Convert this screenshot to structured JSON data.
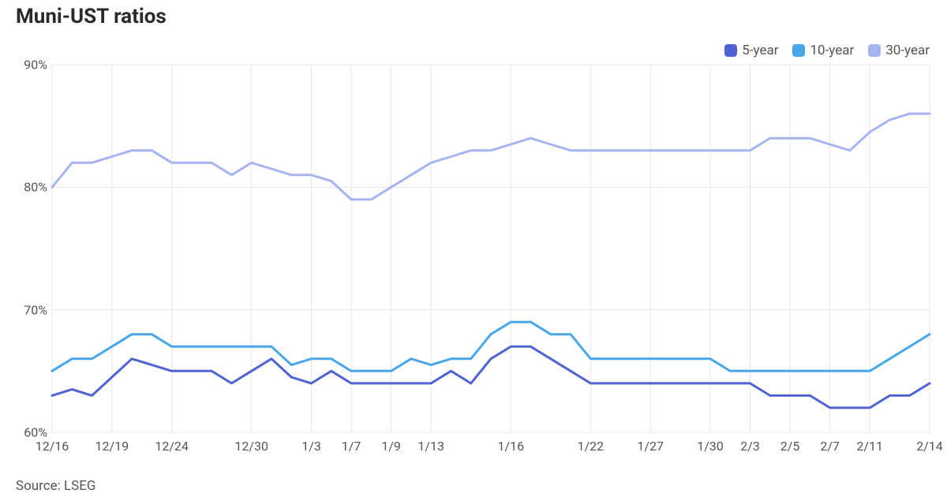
{
  "title": "Muni-UST ratios",
  "source_text": "Source: LSEG",
  "chart": {
    "type": "line",
    "background_color": "#ffffff",
    "grid_color": "#e6e6e6",
    "axis_text_color": "#555555",
    "axis_fontsize": 16,
    "title_fontsize": 26,
    "title_color": "#2a2a2a",
    "line_width": 3,
    "ylim": [
      60,
      90
    ],
    "ytick_step": 10,
    "y_tick_labels": [
      "60%",
      "70%",
      "80%",
      "90%"
    ],
    "x_count": 45,
    "x_ticks": [
      {
        "i": 0,
        "label": "12/16"
      },
      {
        "i": 3,
        "label": "12/19"
      },
      {
        "i": 6,
        "label": "12/24"
      },
      {
        "i": 10,
        "label": "12/30"
      },
      {
        "i": 13,
        "label": "1/3"
      },
      {
        "i": 15,
        "label": "1/7"
      },
      {
        "i": 17,
        "label": "1/9"
      },
      {
        "i": 19,
        "label": "1/13"
      },
      {
        "i": 23,
        "label": "1/16"
      },
      {
        "i": 27,
        "label": "1/22"
      },
      {
        "i": 30,
        "label": "1/27"
      },
      {
        "i": 33,
        "label": "1/30"
      },
      {
        "i": 35,
        "label": "2/3"
      },
      {
        "i": 37,
        "label": "2/5"
      },
      {
        "i": 39,
        "label": "2/7"
      },
      {
        "i": 41,
        "label": "2/11"
      },
      {
        "i": 44,
        "label": "2/14"
      }
    ],
    "legend": [
      {
        "label": "5-year",
        "color": "#4f63d2"
      },
      {
        "label": "10-year",
        "color": "#49a7e9"
      },
      {
        "label": "30-year",
        "color": "#a6b4f0"
      }
    ],
    "series": [
      {
        "name": "5-year",
        "color": "#4f63d2",
        "values": [
          63,
          63.5,
          63,
          64.5,
          66,
          65.5,
          65,
          65,
          65,
          64,
          65,
          66,
          64.5,
          64,
          65,
          64,
          64,
          64,
          64,
          64,
          65,
          64,
          66,
          67,
          67,
          66,
          65,
          64,
          64,
          64,
          64,
          64,
          64,
          64,
          64,
          64,
          63,
          63,
          63,
          62,
          62,
          62,
          63,
          63,
          64
        ]
      },
      {
        "name": "10-year",
        "color": "#49a7e9",
        "values": [
          65,
          66,
          66,
          67,
          68,
          68,
          67,
          67,
          67,
          67,
          67,
          67,
          65.5,
          66,
          66,
          65,
          65,
          65,
          66,
          65.5,
          66,
          66,
          68,
          69,
          69,
          68,
          68,
          66,
          66,
          66,
          66,
          66,
          66,
          66,
          65,
          65,
          65,
          65,
          65,
          65,
          65,
          65,
          66,
          67,
          68
        ]
      },
      {
        "name": "30-year",
        "color": "#a6b4f0",
        "values": [
          80,
          82,
          82,
          82.5,
          83,
          83,
          82,
          82,
          82,
          81,
          82,
          81.5,
          81,
          81,
          80.5,
          79,
          79,
          80,
          81,
          82,
          82.5,
          83,
          83,
          83.5,
          84,
          83.5,
          83,
          83,
          83,
          83,
          83,
          83,
          83,
          83,
          83,
          83,
          84,
          84,
          84,
          83.5,
          83,
          84.5,
          85.5,
          86,
          86
        ]
      }
    ]
  }
}
